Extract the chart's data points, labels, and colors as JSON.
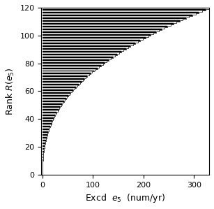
{
  "n_stations": 120,
  "x_max": 330,
  "y_max": 120,
  "xlabel": "Excd  $e_5$  (num/yr)",
  "ylabel": "Rank $R(e_5)$",
  "xlim": [
    -2,
    330
  ],
  "ylim": [
    0,
    120
  ],
  "xticks": [
    0,
    100,
    200,
    300
  ],
  "yticks": [
    0,
    20,
    40,
    60,
    80,
    100,
    120
  ],
  "figsize": [
    3.07,
    2.99
  ],
  "dpi": 100,
  "line_colors": [
    "black",
    "white"
  ],
  "lw": 0.7,
  "background": "white",
  "alpha": 2.5
}
